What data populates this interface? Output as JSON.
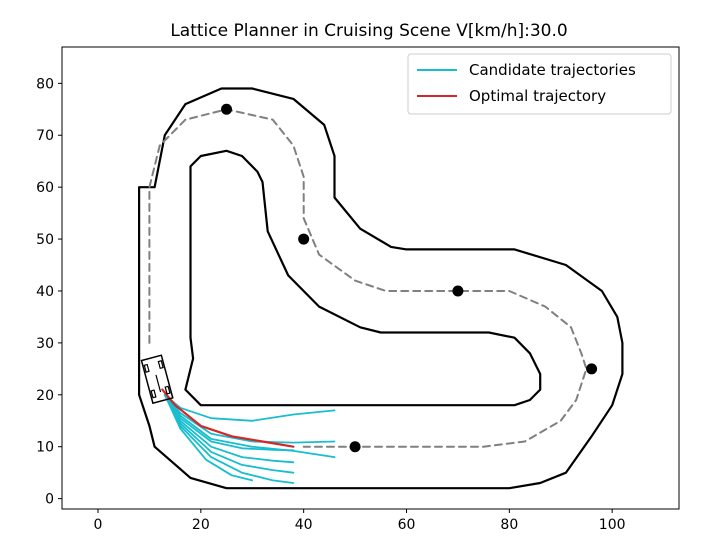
{
  "chart_data": {
    "type": "line",
    "title": "Lattice Planner in Cruising Scene V[km/h]:30.0",
    "xlabel": "",
    "ylabel": "",
    "xlim": [
      -7,
      113
    ],
    "ylim": [
      -2,
      87
    ],
    "x_ticks": [
      0,
      20,
      40,
      60,
      80,
      100
    ],
    "y_ticks": [
      0,
      10,
      20,
      30,
      40,
      50,
      60,
      70,
      80
    ],
    "grid": false,
    "legend": {
      "placement": "top-right"
    },
    "colors": {
      "boundary": "#000000",
      "centerline": "#808080",
      "candidate": "#17becf",
      "optimal": "#d62728",
      "waypoint": "#000000"
    },
    "series": [
      {
        "name": "Candidate trajectories",
        "role": "candidate",
        "lines": [
          [
            [
              13,
              20
            ],
            [
              16,
              17.5
            ],
            [
              22,
              15.5
            ],
            [
              30,
              15
            ],
            [
              38,
              16.2
            ],
            [
              46,
              17
            ]
          ],
          [
            [
              13,
              20
            ],
            [
              16,
              16.5
            ],
            [
              22,
              12.5
            ],
            [
              30,
              11
            ],
            [
              38,
              10.8
            ],
            [
              46,
              11
            ]
          ],
          [
            [
              13,
              20
            ],
            [
              16,
              16
            ],
            [
              22,
              11.5
            ],
            [
              30,
              10
            ],
            [
              38,
              9.2
            ],
            [
              46,
              8
            ]
          ],
          [
            [
              13,
              20
            ],
            [
              16,
              15.5
            ],
            [
              22,
              11
            ],
            [
              28,
              9.7
            ],
            [
              34,
              9.4
            ],
            [
              38,
              9.3
            ]
          ],
          [
            [
              13,
              20
            ],
            [
              16,
              15
            ],
            [
              22,
              10
            ],
            [
              28,
              8
            ],
            [
              34,
              7.3
            ],
            [
              38,
              7
            ]
          ],
          [
            [
              13,
              20
            ],
            [
              16,
              14.5
            ],
            [
              22,
              9
            ],
            [
              28,
              6.5
            ],
            [
              34,
              5.5
            ],
            [
              38,
              5
            ]
          ],
          [
            [
              13,
              20
            ],
            [
              16,
              14
            ],
            [
              22,
              8
            ],
            [
              28,
              5
            ],
            [
              34,
              3.5
            ],
            [
              38,
              3
            ]
          ],
          [
            [
              13,
              20
            ],
            [
              16,
              13.5
            ],
            [
              21,
              7.5
            ],
            [
              26,
              4.5
            ],
            [
              30,
              3.5
            ]
          ]
        ]
      },
      {
        "name": "Optimal trajectory",
        "role": "optimal",
        "lines": [
          [
            [
              12.5,
              21
            ],
            [
              15,
              18
            ],
            [
              20,
              14
            ],
            [
              26,
              12
            ],
            [
              32,
              11
            ],
            [
              38,
              10
            ]
          ]
        ]
      },
      {
        "name": "",
        "role": "boundary",
        "lines": [
          [
            [
              11,
              60
            ],
            [
              13,
              70
            ],
            [
              17,
              76
            ],
            [
              24,
              79
            ],
            [
              30,
              79
            ],
            [
              38,
              77
            ],
            [
              44,
              72
            ],
            [
              46,
              66
            ],
            [
              46,
              58
            ],
            [
              51,
              52
            ],
            [
              57,
              48.5
            ],
            [
              60,
              48
            ],
            [
              81,
              48
            ],
            [
              91,
              45
            ],
            [
              98,
              40
            ],
            [
              101,
              35
            ],
            [
              102,
              30
            ],
            [
              102,
              24
            ],
            [
              100,
              18
            ],
            [
              96,
              12
            ],
            [
              91,
              5
            ],
            [
              86,
              3
            ],
            [
              80,
              2
            ],
            [
              32,
              2
            ],
            [
              25,
              2
            ],
            [
              18,
              4
            ],
            [
              11,
              10
            ],
            [
              10,
              14
            ],
            [
              8,
              20
            ],
            [
              8,
              25
            ],
            [
              8,
              30
            ],
            [
              8,
              60
            ],
            [
              11,
              60
            ]
          ],
          [
            [
              18,
              60
            ],
            [
              18,
              64
            ],
            [
              20,
              66
            ],
            [
              25,
              67
            ],
            [
              28,
              66
            ],
            [
              31,
              63
            ],
            [
              32,
              61
            ],
            [
              33,
              51.5
            ],
            [
              37,
              43
            ],
            [
              43,
              37
            ],
            [
              51,
              33
            ],
            [
              55,
              32
            ],
            [
              76,
              32
            ],
            [
              81,
              31
            ],
            [
              84,
              28
            ],
            [
              86,
              24
            ],
            [
              86,
              21
            ],
            [
              84,
              19
            ],
            [
              81,
              18
            ],
            [
              20,
              18
            ],
            [
              17,
              21
            ],
            [
              18.5,
              27
            ],
            [
              18,
              31
            ],
            [
              18,
              60
            ]
          ]
        ]
      },
      {
        "name": "",
        "role": "centerline",
        "lines": [
          [
            [
              10,
              30
            ],
            [
              10,
              60
            ],
            [
              12,
              68
            ],
            [
              17,
              73
            ],
            [
              25,
              75
            ],
            [
              34,
              73
            ],
            [
              38,
              68
            ],
            [
              40,
              62
            ],
            [
              40,
              54
            ],
            [
              43,
              47
            ],
            [
              50,
              42
            ],
            [
              56,
              40
            ],
            [
              80,
              40
            ],
            [
              87,
              37
            ],
            [
              92,
              33
            ],
            [
              94,
              28
            ],
            [
              95,
              25
            ],
            [
              93,
              19
            ],
            [
              90,
              15
            ],
            [
              83,
              11
            ],
            [
              75,
              10
            ],
            [
              50,
              10
            ],
            [
              40,
              10
            ]
          ]
        ]
      }
    ],
    "waypoints": [
      [
        25,
        75
      ],
      [
        40,
        50
      ],
      [
        70,
        40
      ],
      [
        96,
        25
      ],
      [
        50,
        10
      ]
    ],
    "vehicle": {
      "center": [
        11.5,
        23
      ],
      "heading_deg": -75,
      "length": 8.5,
      "width": 4
    }
  }
}
